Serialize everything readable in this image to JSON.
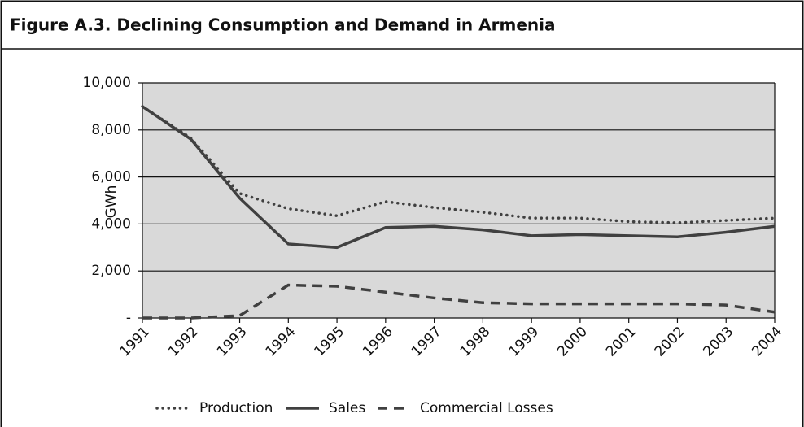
{
  "chart_data": {
    "type": "line",
    "title": "Figure A.3.  Declining Consumption and Demand in Armenia",
    "ylabel": "GWh",
    "categories": [
      "1991",
      "1992",
      "1993",
      "1994",
      "1995",
      "1996",
      "1997",
      "1998",
      "1999",
      "2000",
      "2001",
      "2002",
      "2003",
      "2004"
    ],
    "series": [
      {
        "name": "Production",
        "color": "#404040",
        "line_style": "dotted",
        "values": [
          9000,
          7650,
          5300,
          4650,
          4350,
          4950,
          4700,
          4500,
          4250,
          4250,
          4100,
          4050,
          4150,
          4250
        ]
      },
      {
        "name": "Sales",
        "color": "#404040",
        "line_style": "solid",
        "values": [
          9000,
          7600,
          5100,
          3150,
          3000,
          3850,
          3900,
          3750,
          3500,
          3550,
          3500,
          3450,
          3650,
          3900
        ]
      },
      {
        "name": "Commercial Losses",
        "color": "#404040",
        "line_style": "dashed",
        "values": [
          0,
          0,
          100,
          1400,
          1350,
          1100,
          850,
          650,
          600,
          600,
          600,
          600,
          550,
          250
        ]
      }
    ],
    "ylim": [
      0,
      10000
    ],
    "yticks": [
      {
        "value": 0,
        "label": "-"
      },
      {
        "value": 2000,
        "label": "2,000"
      },
      {
        "value": 4000,
        "label": "4,000"
      },
      {
        "value": 6000,
        "label": "6,000"
      },
      {
        "value": 8000,
        "label": "8,000"
      },
      {
        "value": 10000,
        "label": "10,000"
      }
    ],
    "grid": true,
    "plot_background": "#d9d9d9",
    "legend": "bottom"
  }
}
